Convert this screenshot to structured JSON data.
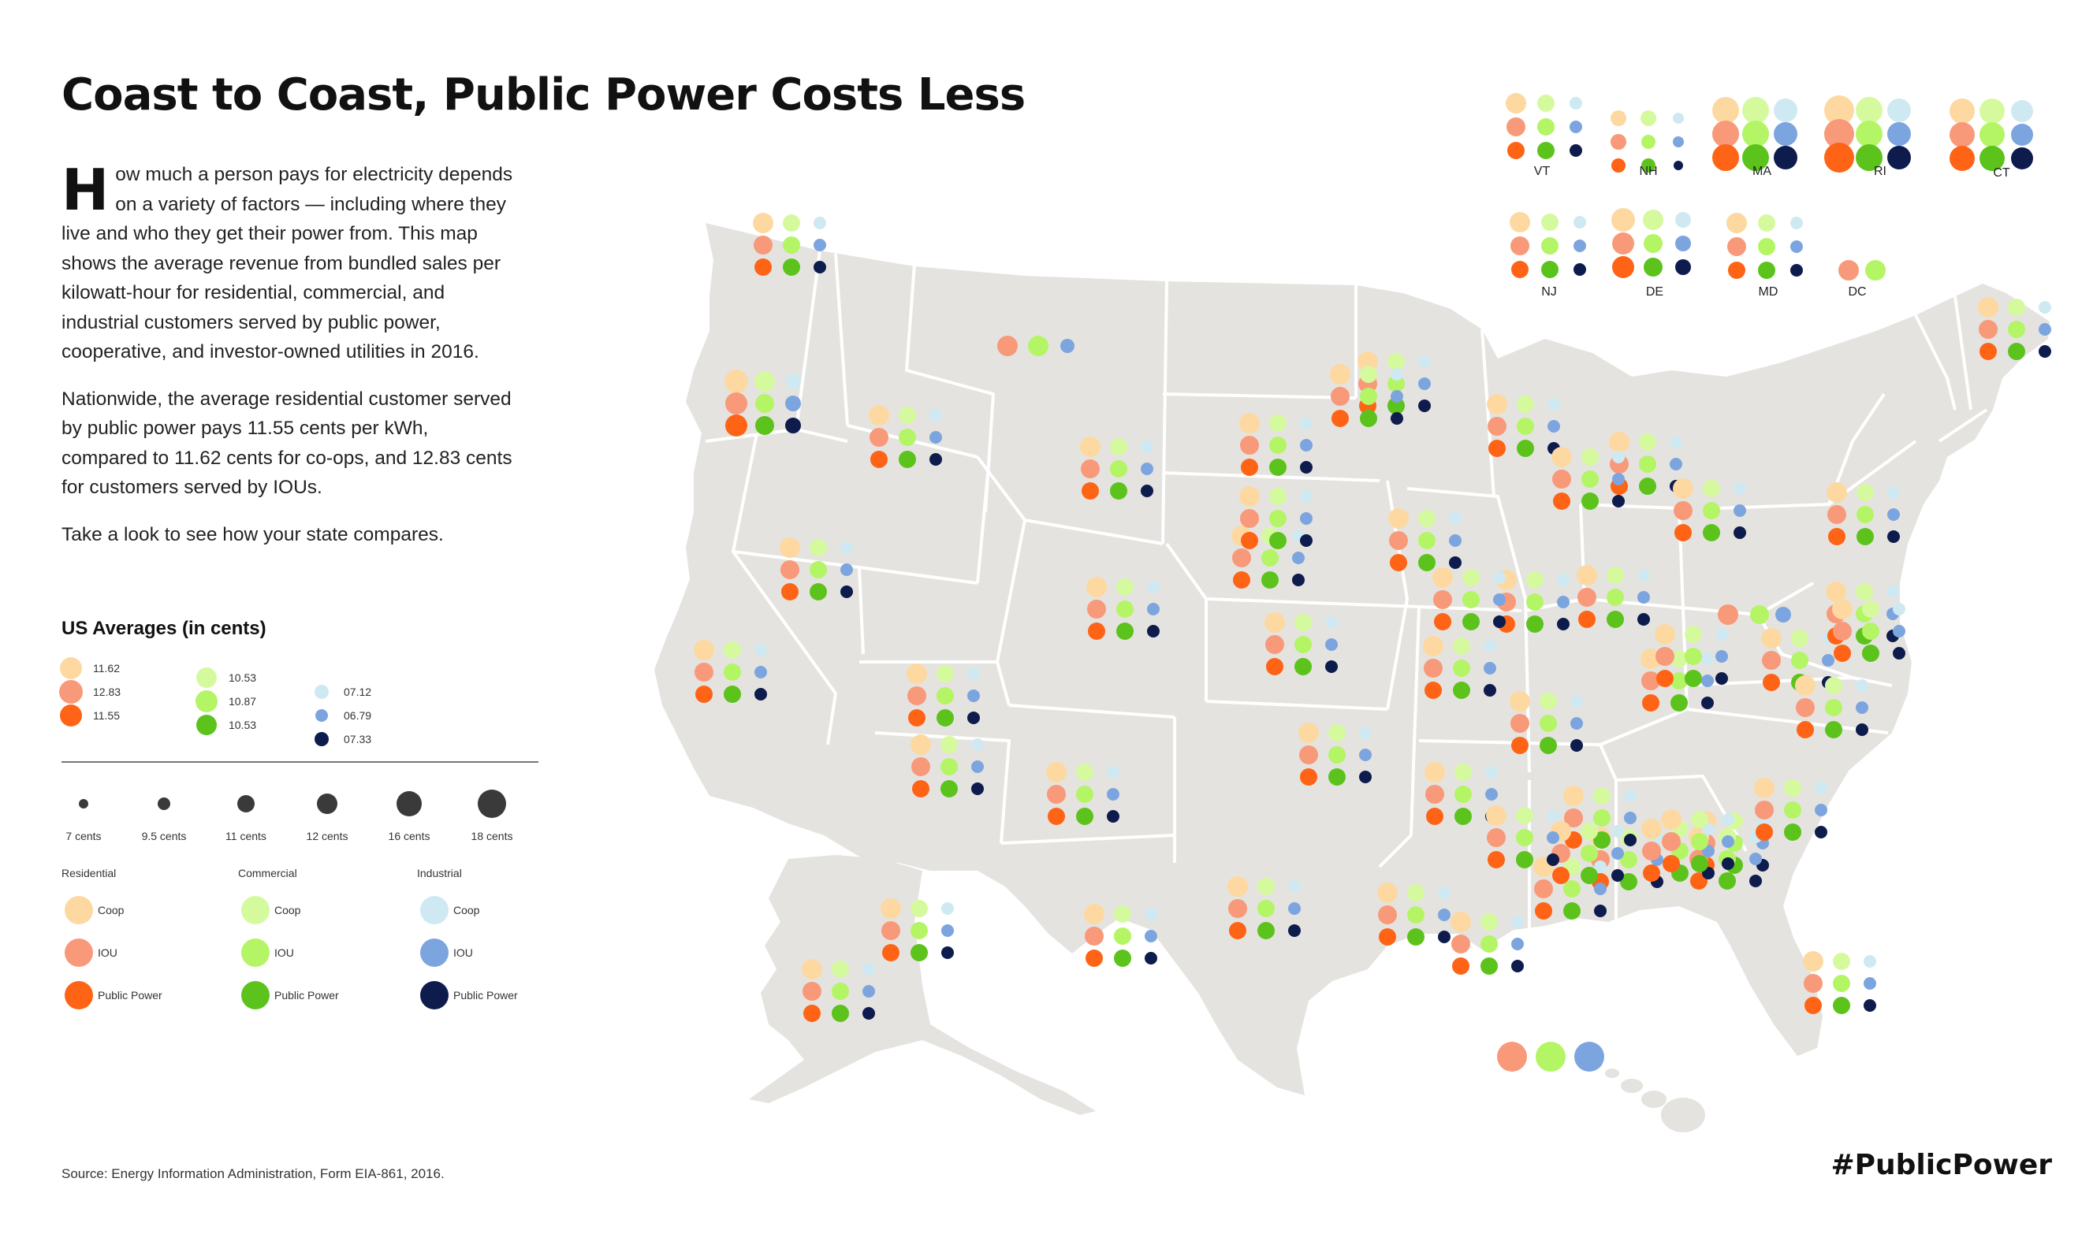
{
  "title": "Coast to Coast, Public Power Costs Less",
  "intro": {
    "dropcap": "H",
    "p1": "ow much a person pays for electricity depends on a variety of factors — including where they live and who they get their power from. This map shows the average revenue from bundled sales per kilowatt-hour for residential, commercial, and industrial customers served by public power, cooperative, and investor-owned utilities in 2016.",
    "p2": "Nationwide, the average residential customer served by public power pays 11.55 cents per kWh, compared to 11.62 cents for co-ops, and 12.83 cents for customers served by IOUs.",
    "p3": "Take a look to see how your state compares."
  },
  "us_averages": {
    "title": "US Averages (in cents)",
    "residential": [
      "11.62",
      "12.83",
      "11.55"
    ],
    "commercial": [
      "10.53",
      "10.87",
      "10.53"
    ],
    "industrial": [
      "07.12",
      "06.79",
      "07.33"
    ]
  },
  "size_scale": [
    "7 cents",
    "9.5 cents",
    "11 cents",
    "12 cents",
    "16 cents",
    "18 cents"
  ],
  "color_legend": {
    "groups": [
      "Residential",
      "Commercial",
      "Industrial"
    ],
    "types": [
      "Coop",
      "IOU",
      "Public Power"
    ]
  },
  "colors": {
    "res_coop": "#FDD9A1",
    "res_iou": "#F8997A",
    "res_pub": "#FF6315",
    "com_coop": "#D5FA9E",
    "com_iou": "#B3F565",
    "com_pub": "#5CC31C",
    "ind_coop": "#CFE9F2",
    "ind_iou": "#7CA5DF",
    "ind_pub": "#0E1B4D",
    "land": "#E5E3DF",
    "border": "#FFFFFF",
    "bubble_dark": "#3A3A3A"
  },
  "state_labels": [
    "VT",
    "NH",
    "MA",
    "RI",
    "CT",
    "NJ",
    "DE",
    "MD",
    "DC"
  ],
  "source": "Source: Energy Information Administration, Form EIA-861, 2016.",
  "hashtag": "#PublicPower"
}
